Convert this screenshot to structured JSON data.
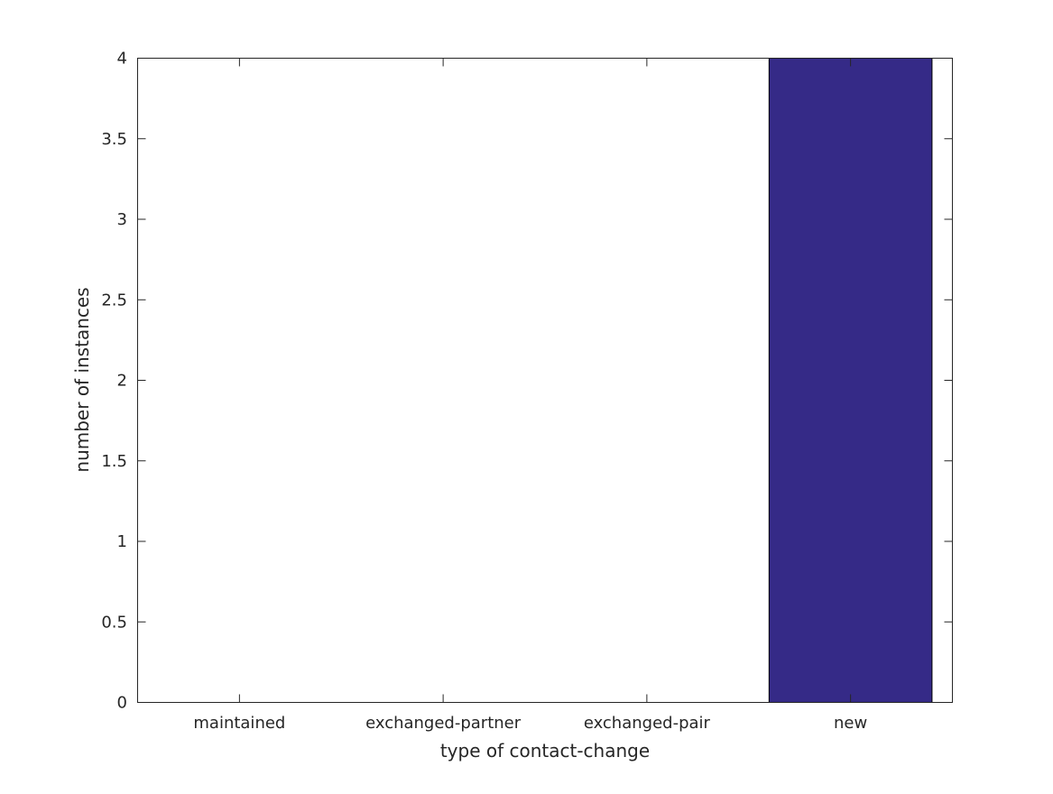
{
  "chart_data": {
    "type": "bar",
    "categories": [
      "maintained",
      "exchanged-partner",
      "exchanged-pair",
      "new"
    ],
    "values": [
      0,
      0,
      0,
      4
    ],
    "xlabel": "type of contact-change",
    "ylabel": "number of instances",
    "ylim": [
      0,
      4
    ],
    "yticks": [
      0,
      0.5,
      1,
      1.5,
      2,
      2.5,
      3,
      3.5,
      4
    ],
    "ytick_labels": [
      "0",
      "0.5",
      "1",
      "1.5",
      "2",
      "2.5",
      "3",
      "3.5",
      "4"
    ],
    "grid": false,
    "bar_color": "#352a87"
  }
}
